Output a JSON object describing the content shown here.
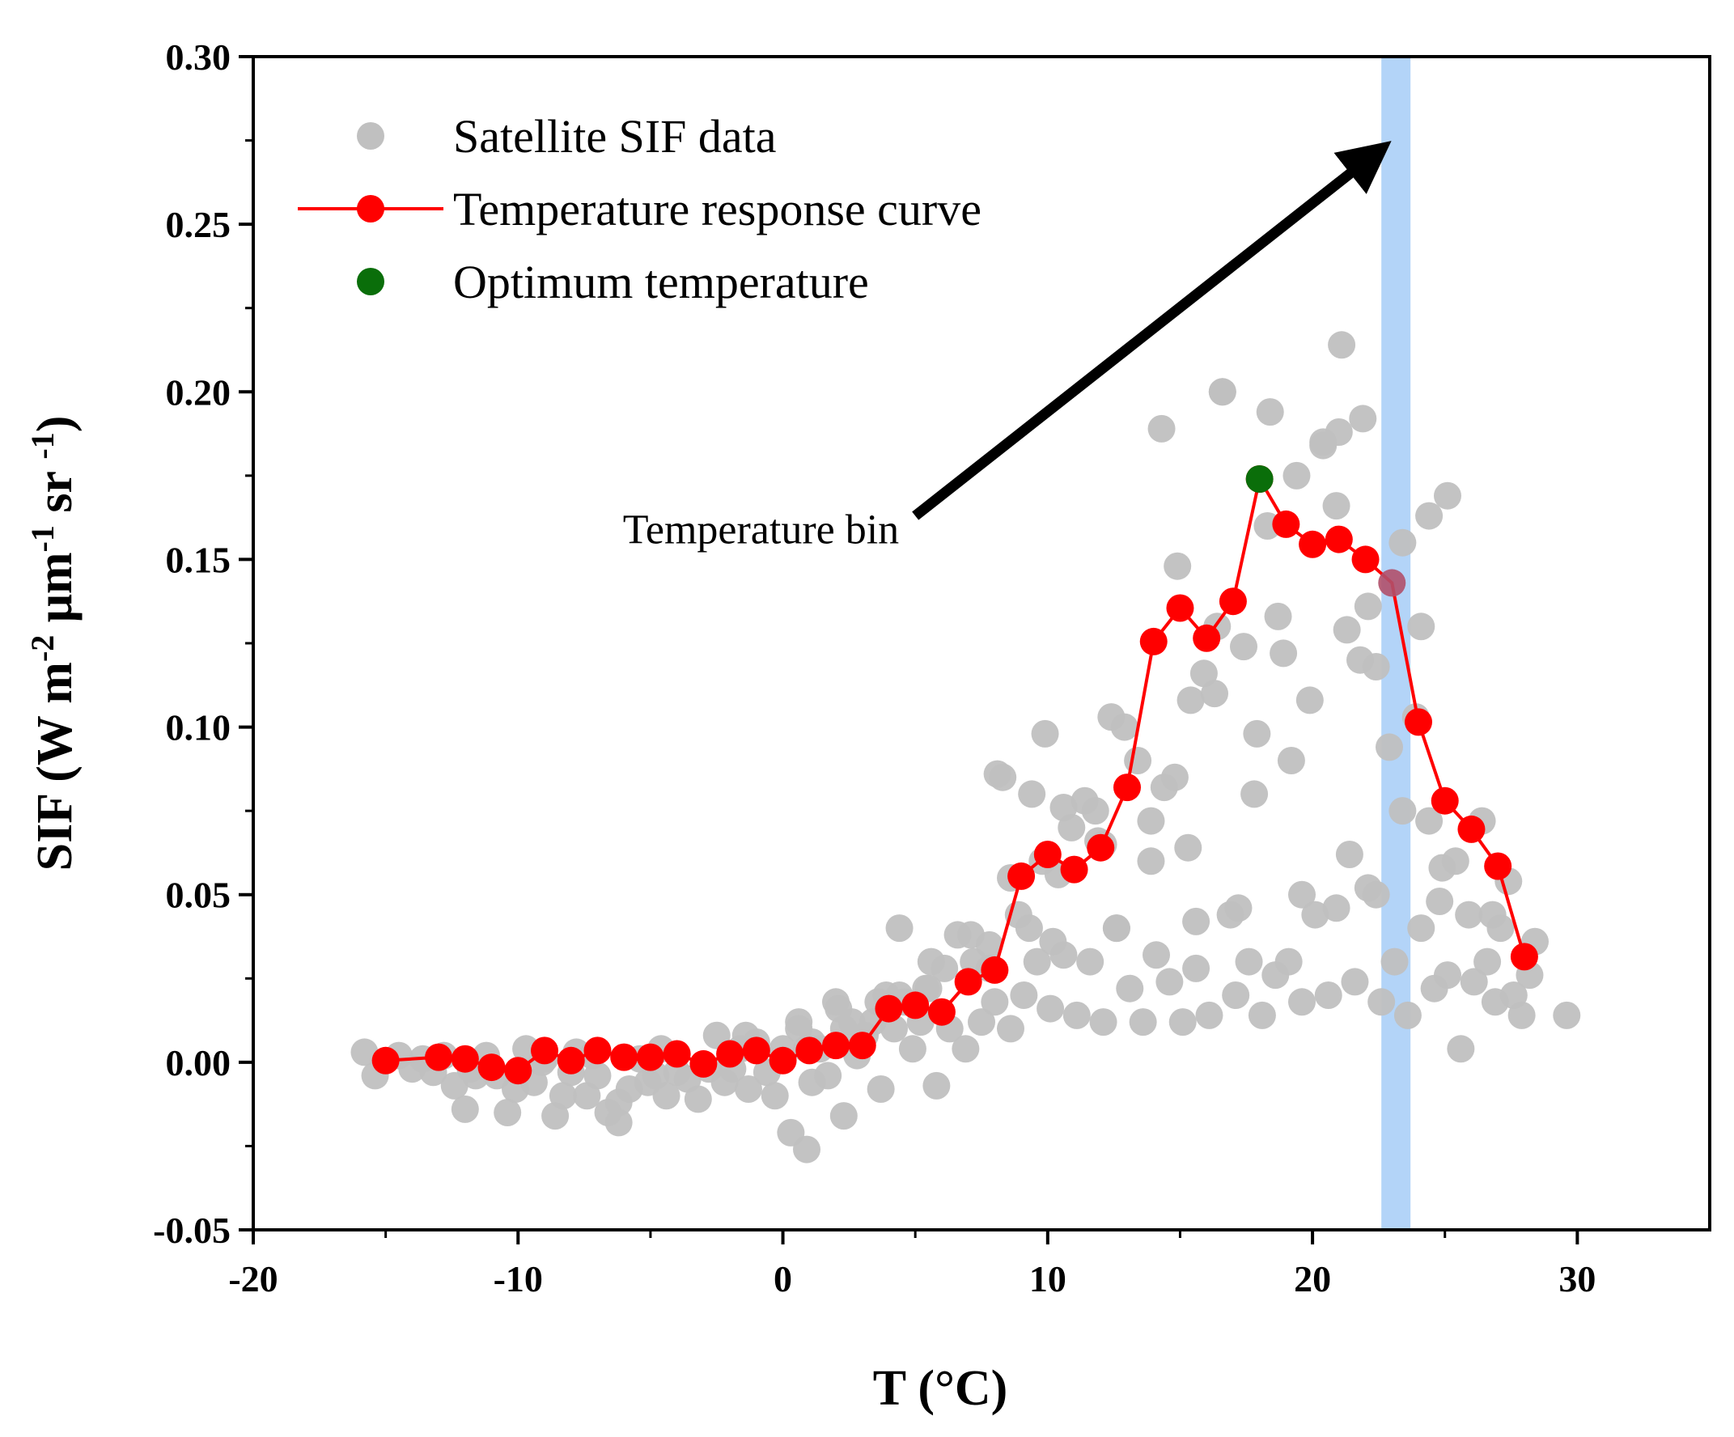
{
  "chart_data": {
    "type": "scatter",
    "title": "",
    "xlabel": "T (°C)",
    "ylabel_parts": {
      "base": "SIF (W m",
      "sup1": "-2",
      "mid": " μm",
      "sup2": "-1",
      "end": " sr ",
      "sup3": "-1",
      "close": ")"
    },
    "xlim": [
      -20,
      35
    ],
    "ylim": [
      -0.05,
      0.3
    ],
    "x_ticks": [
      -20,
      -10,
      0,
      10,
      20,
      30
    ],
    "x_tick_labels": [
      "-20",
      "-10",
      "0",
      "10",
      "20",
      "30"
    ],
    "y_ticks": [
      -0.05,
      0.0,
      0.05,
      0.1,
      0.15,
      0.2,
      0.25,
      0.3
    ],
    "y_tick_labels": [
      "-0.05",
      "0.00",
      "0.05",
      "0.10",
      "0.15",
      "0.20",
      "0.25",
      "0.30"
    ],
    "grid": false,
    "legend_position": "top-left",
    "colors": {
      "satellite": "#c0c0c0",
      "curve": "#ff0000",
      "optimum": "#0a6e0a",
      "band": "#a6cdf7"
    },
    "series": [
      {
        "name": "Satellite SIF data",
        "kind": "scatter",
        "x": [
          -15.8,
          -15.4,
          -14.5,
          -14.0,
          -13.6,
          -13.2,
          -12.8,
          -12.4,
          -12.0,
          -11.6,
          -11.2,
          -10.8,
          -10.4,
          -10.1,
          -9.7,
          -9.4,
          -9.0,
          -8.6,
          -8.3,
          -8.0,
          -7.8,
          -7.4,
          -7.0,
          -6.6,
          -6.2,
          -5.8,
          -5.4,
          -5.1,
          -4.8,
          -4.4,
          -4.0,
          -3.6,
          -3.2,
          -2.8,
          -2.5,
          -2.2,
          -1.9,
          -1.6,
          -1.3,
          -1.0,
          -0.6,
          -0.3,
          0.0,
          0.3,
          0.6,
          0.9,
          1.1,
          1.4,
          1.7,
          2.0,
          2.3,
          2.6,
          2.8,
          3.1,
          3.4,
          3.7,
          3.9,
          4.2,
          4.4,
          4.6,
          4.9,
          5.2,
          5.5,
          5.8,
          6.1,
          6.3,
          6.6,
          6.9,
          7.2,
          7.5,
          7.8,
          8.0,
          8.3,
          8.6,
          8.9,
          9.1,
          9.4,
          9.6,
          9.9,
          10.1,
          10.4,
          10.6,
          10.9,
          11.1,
          11.4,
          11.6,
          11.9,
          12.1,
          12.4,
          12.6,
          12.9,
          13.1,
          13.4,
          13.6,
          13.9,
          14.1,
          14.4,
          14.6,
          14.9,
          15.1,
          15.4,
          15.6,
          15.9,
          16.1,
          16.4,
          16.6,
          16.9,
          17.1,
          17.4,
          17.6,
          17.9,
          18.1,
          18.4,
          18.6,
          18.9,
          19.1,
          19.4,
          19.6,
          19.9,
          20.1,
          20.4,
          20.6,
          20.9,
          21.1,
          21.4,
          21.6,
          21.9,
          22.1,
          22.4,
          22.6,
          22.9,
          23.1,
          23.4,
          23.6,
          23.9,
          24.1,
          24.4,
          24.6,
          24.9,
          25.1,
          25.4,
          25.6,
          25.9,
          26.1,
          26.4,
          26.6,
          26.9,
          27.1,
          27.4,
          27.6,
          27.9,
          28.2,
          29.6,
          21.0,
          16.6,
          18.3,
          14.3,
          20.9,
          24.4,
          25.1,
          21.3,
          20.4,
          18.7,
          13.9,
          9.3,
          8.1,
          12.1,
          10.6,
          15.3,
          19.2,
          22.4,
          23.4,
          24.1,
          17.8,
          21.8,
          16.3,
          14.8,
          11.8,
          9.8,
          8.6,
          7.1,
          5.6,
          4.4,
          2.1,
          0.6,
          -1.4,
          -4.6,
          -7.2,
          -9.1,
          -11.8,
          -6.2,
          0.9,
          1.1,
          2.3,
          3.6,
          5.4,
          7.8,
          10.2,
          12.6,
          15.6,
          17.2,
          19.6,
          22.1,
          24.8,
          26.8,
          28.4
        ],
        "y": [
          0.003,
          -0.004,
          0.002,
          -0.002,
          0.001,
          -0.003,
          0.002,
          -0.007,
          -0.014,
          -0.004,
          0.002,
          -0.004,
          -0.015,
          -0.008,
          0.004,
          -0.006,
          0.001,
          -0.016,
          -0.01,
          -0.003,
          0.003,
          -0.01,
          -0.004,
          -0.015,
          -0.018,
          -0.008,
          0.001,
          -0.006,
          -0.004,
          -0.01,
          -0.003,
          -0.005,
          -0.011,
          -0.002,
          0.008,
          -0.006,
          -0.002,
          0.004,
          -0.008,
          0.006,
          -0.003,
          -0.01,
          0.004,
          -0.021,
          0.012,
          -0.026,
          -0.006,
          0.004,
          -0.004,
          0.018,
          -0.016,
          0.012,
          0.002,
          0.008,
          0.012,
          -0.008,
          0.02,
          0.01,
          0.04,
          0.018,
          0.004,
          0.012,
          0.022,
          -0.007,
          0.028,
          0.01,
          0.038,
          0.004,
          0.03,
          0.012,
          0.035,
          0.018,
          0.085,
          0.01,
          0.044,
          0.02,
          0.08,
          0.03,
          0.098,
          0.016,
          0.056,
          0.032,
          0.07,
          0.014,
          0.078,
          0.03,
          0.066,
          0.012,
          0.103,
          0.04,
          0.1,
          0.022,
          0.09,
          0.012,
          0.072,
          0.032,
          0.082,
          0.024,
          0.148,
          0.012,
          0.108,
          0.028,
          0.116,
          0.014,
          0.13,
          0.2,
          0.044,
          0.02,
          0.124,
          0.03,
          0.098,
          0.014,
          0.194,
          0.026,
          0.122,
          0.03,
          0.175,
          0.018,
          0.108,
          0.044,
          0.185,
          0.02,
          0.046,
          0.214,
          0.062,
          0.024,
          0.192,
          0.136,
          0.05,
          0.018,
          0.094,
          0.03,
          0.155,
          0.014,
          0.103,
          0.04,
          0.072,
          0.022,
          0.058,
          0.026,
          0.06,
          0.004,
          0.044,
          0.024,
          0.072,
          0.03,
          0.018,
          0.04,
          0.054,
          0.02,
          0.014,
          0.026,
          0.014,
          0.188,
          0.2,
          0.16,
          0.189,
          0.166,
          0.163,
          0.169,
          0.129,
          0.184,
          0.133,
          0.06,
          0.04,
          0.086,
          0.065,
          0.076,
          0.064,
          0.09,
          0.118,
          0.075,
          0.13,
          0.08,
          0.12,
          0.11,
          0.085,
          0.075,
          0.06,
          0.055,
          0.038,
          0.03,
          0.02,
          0.016,
          0.01,
          0.008,
          0.004,
          0.002,
          0.0,
          -0.002,
          -0.012,
          0.004,
          0.006,
          0.01,
          0.018,
          0.022,
          0.028,
          0.036,
          0.04,
          0.042,
          0.046,
          0.05,
          0.052,
          0.048,
          0.044,
          0.036
        ]
      },
      {
        "name": "Temperature response curve",
        "kind": "line-markers",
        "x": [
          -15,
          -13,
          -12,
          -11,
          -10,
          -9,
          -8,
          -7,
          -6,
          -5,
          -4,
          -3,
          -2,
          -1,
          0,
          1,
          2,
          3,
          4,
          5,
          6,
          7,
          8,
          9,
          10,
          11,
          12,
          13,
          14,
          15,
          16,
          17,
          18,
          19,
          20,
          21,
          22,
          23,
          24,
          25,
          26,
          27,
          28
        ],
        "y": [
          0.0005,
          0.0015,
          0.001,
          -0.0015,
          -0.0025,
          0.0035,
          0.0005,
          0.0035,
          0.0015,
          0.0015,
          0.0025,
          -0.0005,
          0.0025,
          0.0035,
          0.0005,
          0.0035,
          0.005,
          0.005,
          0.016,
          0.017,
          0.015,
          0.024,
          0.0275,
          0.0555,
          0.062,
          0.0575,
          0.064,
          0.082,
          0.1255,
          0.1355,
          0.1265,
          0.1375,
          0.174,
          0.1605,
          0.1545,
          0.156,
          0.15,
          0.143,
          0.1015,
          0.078,
          0.0695,
          0.0585,
          0.0315
        ],
        "highlight_x": 23
      },
      {
        "name": "Optimum temperature",
        "kind": "point",
        "x": [
          18
        ],
        "y": [
          0.174
        ]
      }
    ],
    "band": {
      "x_from": 22.6,
      "x_to": 23.7
    },
    "annotation": {
      "text": "Temperature bin",
      "arrow_from": [
        5,
        0.163
      ],
      "arrow_to": [
        22.2,
        0.27
      ]
    }
  }
}
